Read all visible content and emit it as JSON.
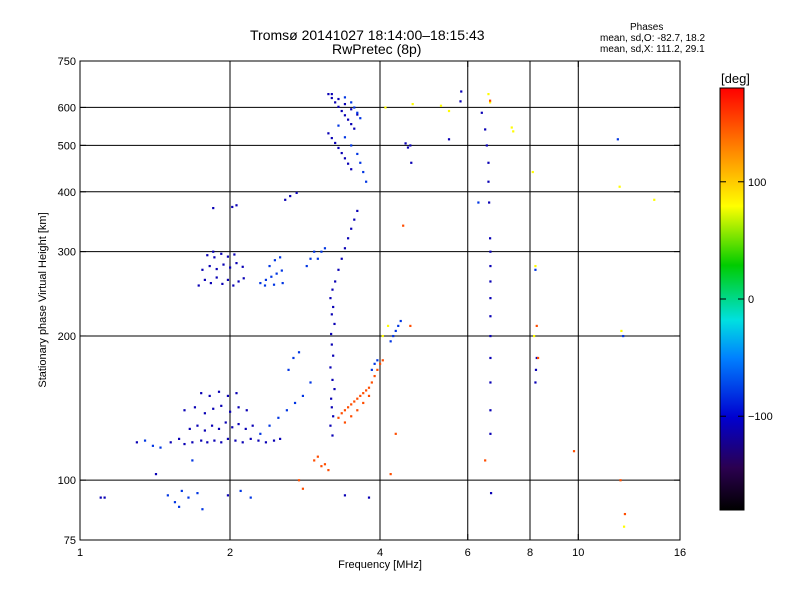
{
  "header": {
    "title_line1": "Tromsø 20141027 18:14:00–18:15:43",
    "title_line2": "RwPretec (8p)",
    "phase_title": "Phases",
    "phase_line1": "mean, sd,O: -82.7, 18.2",
    "phase_line2": "mean, sd,X: 111.2, 29.1"
  },
  "chart_data": {
    "type": "scatter",
    "xlabel": "Frequency [MHz]",
    "ylabel": "Stationary phase Virtual Height [km]",
    "x_scale": "log",
    "y_scale": "log",
    "xlim": [
      1,
      16
    ],
    "ylim": [
      75,
      750
    ],
    "x_ticks": [
      1,
      2,
      4,
      6,
      8,
      10,
      16
    ],
    "x_tick_labels": [
      "1",
      "2",
      "4",
      "6",
      "8",
      "10",
      "16"
    ],
    "y_ticks": [
      75,
      100,
      200,
      300,
      400,
      500,
      600,
      750
    ],
    "y_tick_labels": [
      "75",
      "100",
      "200",
      "300",
      "400",
      "500",
      "600",
      "750"
    ],
    "grid": true,
    "grid_x": [
      2,
      4,
      6,
      8,
      10
    ],
    "grid_y": [
      100,
      200,
      300,
      400,
      500,
      600
    ],
    "colorbar": {
      "label": "[deg]",
      "range": [
        -180,
        180
      ],
      "ticks": [
        100,
        0,
        -100
      ],
      "tick_labels": [
        "100",
        "0",
        "−100"
      ]
    },
    "series": [
      {
        "color_deg": -110,
        "points": [
          [
            1.1,
            92
          ],
          [
            1.12,
            92
          ],
          [
            1.42,
            103
          ],
          [
            1.52,
            120
          ],
          [
            1.58,
            122
          ],
          [
            1.62,
            119
          ],
          [
            1.68,
            120
          ],
          [
            1.75,
            121
          ],
          [
            1.8,
            120
          ],
          [
            1.86,
            121
          ],
          [
            1.92,
            120
          ],
          [
            1.98,
            122
          ],
          [
            2.05,
            121
          ],
          [
            2.12,
            120
          ],
          [
            2.2,
            122
          ],
          [
            2.28,
            121
          ],
          [
            2.36,
            120
          ],
          [
            2.45,
            121
          ],
          [
            2.52,
            122
          ],
          [
            1.66,
            128
          ],
          [
            1.72,
            130
          ],
          [
            1.78,
            127
          ],
          [
            1.84,
            130
          ],
          [
            1.9,
            128
          ],
          [
            1.96,
            132
          ],
          [
            2.02,
            129
          ],
          [
            2.08,
            131
          ],
          [
            2.15,
            128
          ],
          [
            2.22,
            130
          ],
          [
            1.62,
            140
          ],
          [
            1.7,
            142
          ],
          [
            1.78,
            138
          ],
          [
            1.85,
            141
          ],
          [
            1.92,
            143
          ],
          [
            2.0,
            139
          ],
          [
            2.08,
            142
          ],
          [
            2.16,
            140
          ],
          [
            1.75,
            152
          ],
          [
            1.82,
            150
          ],
          [
            1.9,
            153
          ],
          [
            1.98,
            150
          ],
          [
            2.06,
            152
          ],
          [
            1.73,
            255
          ],
          [
            1.78,
            262
          ],
          [
            1.83,
            258
          ],
          [
            1.88,
            265
          ],
          [
            1.93,
            257
          ],
          [
            1.98,
            262
          ],
          [
            2.03,
            255
          ],
          [
            2.08,
            260
          ],
          [
            2.13,
            264
          ],
          [
            1.76,
            275
          ],
          [
            1.82,
            280
          ],
          [
            1.88,
            276
          ],
          [
            1.94,
            282
          ],
          [
            2.0,
            278
          ],
          [
            2.06,
            284
          ],
          [
            2.12,
            279
          ],
          [
            1.8,
            295
          ],
          [
            1.86,
            292
          ],
          [
            1.92,
            297
          ],
          [
            1.98,
            293
          ],
          [
            2.04,
            296
          ],
          [
            1.85,
            370
          ],
          [
            2.02,
            372
          ],
          [
            2.06,
            375
          ],
          [
            2.58,
            385
          ],
          [
            2.64,
            392
          ],
          [
            2.72,
            398
          ],
          [
            3.15,
            640
          ],
          [
            3.2,
            628
          ],
          [
            3.25,
            615
          ],
          [
            3.3,
            602
          ],
          [
            3.35,
            590
          ],
          [
            3.4,
            578
          ],
          [
            3.45,
            566
          ],
          [
            3.5,
            554
          ],
          [
            3.55,
            542
          ],
          [
            3.15,
            530
          ],
          [
            3.2,
            518
          ],
          [
            3.25,
            506
          ],
          [
            3.3,
            494
          ],
          [
            3.35,
            482
          ],
          [
            3.4,
            470
          ],
          [
            3.45,
            458
          ],
          [
            3.5,
            446
          ],
          [
            3.2,
            640
          ],
          [
            3.3,
            625
          ],
          [
            3.4,
            610
          ],
          [
            3.5,
            595
          ],
          [
            3.6,
            580
          ],
          [
            3.2,
            222
          ],
          [
            3.22,
            230
          ],
          [
            3.18,
            240
          ],
          [
            3.21,
            250
          ],
          [
            3.24,
            212
          ],
          [
            3.19,
            202
          ],
          [
            3.2,
            192
          ],
          [
            3.22,
            182
          ],
          [
            3.18,
            172
          ],
          [
            3.21,
            162
          ],
          [
            3.24,
            155
          ],
          [
            3.19,
            148
          ],
          [
            3.2,
            142
          ],
          [
            3.22,
            136
          ],
          [
            3.18,
            130
          ],
          [
            3.21,
            124
          ],
          [
            3.25,
            260
          ],
          [
            3.3,
            275
          ],
          [
            3.35,
            290
          ],
          [
            3.4,
            305
          ],
          [
            3.45,
            320
          ],
          [
            3.5,
            335
          ],
          [
            3.55,
            350
          ],
          [
            3.6,
            365
          ],
          [
            4.5,
            505
          ],
          [
            4.55,
            495
          ],
          [
            4.6,
            500
          ],
          [
            4.62,
            460
          ],
          [
            5.5,
            515
          ],
          [
            5.8,
            618
          ],
          [
            5.82,
            648
          ],
          [
            6.4,
            585
          ],
          [
            6.5,
            540
          ],
          [
            6.55,
            500
          ],
          [
            6.6,
            460
          ],
          [
            6.6,
            420
          ],
          [
            6.62,
            380
          ],
          [
            6.65,
            320
          ],
          [
            6.66,
            300
          ],
          [
            6.66,
            280
          ],
          [
            6.66,
            260
          ],
          [
            6.66,
            240
          ],
          [
            6.66,
            220
          ],
          [
            6.66,
            200
          ],
          [
            6.66,
            180
          ],
          [
            6.66,
            160
          ],
          [
            6.66,
            140
          ],
          [
            6.66,
            125
          ],
          [
            6.68,
            94
          ],
          [
            8.2,
            160
          ],
          [
            8.22,
            170
          ],
          [
            8.25,
            180
          ],
          [
            3.4,
            93
          ],
          [
            3.8,
            92
          ],
          [
            1.3,
            120
          ],
          [
            1.85,
            300
          ],
          [
            1.98,
            93
          ]
        ]
      },
      {
        "color_deg": -80,
        "points": [
          [
            1.5,
            93
          ],
          [
            1.55,
            90
          ],
          [
            1.6,
            95
          ],
          [
            1.58,
            88
          ],
          [
            1.65,
            92
          ],
          [
            1.72,
            94
          ],
          [
            1.76,
            87
          ],
          [
            1.35,
            121
          ],
          [
            1.4,
            118
          ],
          [
            1.45,
            117
          ],
          [
            1.68,
            110
          ],
          [
            2.3,
            125
          ],
          [
            2.4,
            130
          ],
          [
            2.5,
            135
          ],
          [
            2.6,
            140
          ],
          [
            2.7,
            145
          ],
          [
            2.8,
            150
          ],
          [
            2.9,
            160
          ],
          [
            2.62,
            170
          ],
          [
            2.68,
            180
          ],
          [
            2.75,
            185
          ],
          [
            2.3,
            258
          ],
          [
            2.36,
            262
          ],
          [
            2.42,
            266
          ],
          [
            2.48,
            270
          ],
          [
            2.54,
            274
          ],
          [
            2.4,
            280
          ],
          [
            2.46,
            288
          ],
          [
            2.52,
            292
          ],
          [
            2.35,
            255
          ],
          [
            2.45,
            256
          ],
          [
            2.55,
            258
          ],
          [
            2.85,
            280
          ],
          [
            2.9,
            290
          ],
          [
            2.95,
            300
          ],
          [
            3.0,
            290
          ],
          [
            3.05,
            300
          ],
          [
            3.1,
            305
          ],
          [
            3.3,
            550
          ],
          [
            3.4,
            520
          ],
          [
            3.5,
            500
          ],
          [
            3.6,
            480
          ],
          [
            3.65,
            460
          ],
          [
            3.7,
            440
          ],
          [
            3.75,
            420
          ],
          [
            3.4,
            630
          ],
          [
            3.5,
            615
          ],
          [
            3.55,
            600
          ],
          [
            3.6,
            585
          ],
          [
            3.65,
            570
          ],
          [
            4.2,
            195
          ],
          [
            4.25,
            200
          ],
          [
            4.3,
            205
          ],
          [
            4.35,
            210
          ],
          [
            4.4,
            215
          ],
          [
            3.85,
            170
          ],
          [
            3.9,
            175
          ],
          [
            3.95,
            178
          ],
          [
            2.1,
            95
          ],
          [
            2.2,
            92
          ],
          [
            6.3,
            380
          ],
          [
            8.2,
            275
          ],
          [
            12.0,
            515
          ],
          [
            12.3,
            200
          ]
        ]
      },
      {
        "color_deg": 80,
        "points": [
          [
            4.1,
            600
          ],
          [
            4.65,
            610
          ],
          [
            5.3,
            605
          ],
          [
            5.5,
            590
          ],
          [
            6.6,
            640
          ],
          [
            6.65,
            615
          ],
          [
            7.35,
            545
          ],
          [
            7.4,
            535
          ],
          [
            8.1,
            440
          ],
          [
            8.2,
            280
          ],
          [
            8.15,
            200
          ],
          [
            12.1,
            410
          ],
          [
            12.2,
            205
          ],
          [
            12.35,
            80
          ],
          [
            14.2,
            385
          ],
          [
            4.05,
            200
          ],
          [
            4.15,
            210
          ]
        ]
      },
      {
        "color_deg": 150,
        "points": [
          [
            3.3,
            135
          ],
          [
            3.35,
            138
          ],
          [
            3.4,
            140
          ],
          [
            3.45,
            142
          ],
          [
            3.5,
            144
          ],
          [
            3.55,
            146
          ],
          [
            3.6,
            148
          ],
          [
            3.65,
            150
          ],
          [
            3.7,
            152
          ],
          [
            3.75,
            154
          ],
          [
            3.8,
            156
          ],
          [
            3.85,
            160
          ],
          [
            3.9,
            165
          ],
          [
            3.95,
            170
          ],
          [
            4.0,
            175
          ],
          [
            4.05,
            178
          ],
          [
            3.4,
            132
          ],
          [
            3.5,
            136
          ],
          [
            3.6,
            140
          ],
          [
            3.7,
            145
          ],
          [
            3.8,
            150
          ],
          [
            2.95,
            110
          ],
          [
            3.0,
            112
          ],
          [
            3.05,
            107
          ],
          [
            3.1,
            108
          ],
          [
            3.15,
            105
          ],
          [
            2.75,
            100
          ],
          [
            2.8,
            96
          ],
          [
            4.45,
            340
          ],
          [
            4.6,
            210
          ],
          [
            4.2,
            103
          ],
          [
            4.3,
            125
          ],
          [
            6.5,
            110
          ],
          [
            6.65,
            620
          ],
          [
            9.8,
            115
          ],
          [
            12.4,
            85
          ],
          [
            12.15,
            100
          ],
          [
            8.25,
            210
          ],
          [
            8.3,
            180
          ]
        ]
      }
    ]
  }
}
